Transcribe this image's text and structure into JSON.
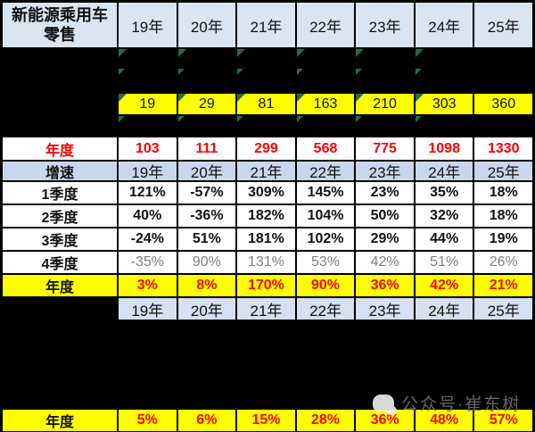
{
  "header": {
    "title": "新能源乘用车零售",
    "years": [
      "19年",
      "20年",
      "21年",
      "22年",
      "23年",
      "24年",
      "25年"
    ]
  },
  "retail_volume_row": {
    "values": [
      "19",
      "29",
      "81",
      "163",
      "210",
      "303",
      "360"
    ]
  },
  "annual_volume": {
    "label": "年度",
    "values": [
      "103",
      "111",
      "299",
      "568",
      "775",
      "1098",
      "1330"
    ]
  },
  "growth": {
    "label": "增速",
    "years": [
      "19年",
      "20年",
      "21年",
      "22年",
      "23年",
      "24年",
      "25年"
    ]
  },
  "quarters": [
    {
      "label": "1季度",
      "values": [
        "121%",
        "-57%",
        "309%",
        "145%",
        "23%",
        "35%",
        "18%"
      ]
    },
    {
      "label": "2季度",
      "values": [
        "40%",
        "-36%",
        "182%",
        "104%",
        "50%",
        "32%",
        "18%"
      ]
    },
    {
      "label": "3季度",
      "values": [
        "-24%",
        "51%",
        "181%",
        "102%",
        "29%",
        "44%",
        "19%"
      ]
    },
    {
      "label": "4季度",
      "values": [
        "-35%",
        "90%",
        "131%",
        "53%",
        "42%",
        "51%",
        "26%"
      ]
    }
  ],
  "annual_growth": {
    "label": "年度",
    "values": [
      "3%",
      "8%",
      "170%",
      "90%",
      "36%",
      "42%",
      "21%"
    ]
  },
  "lower_header": {
    "years": [
      "19年",
      "20年",
      "21年",
      "22年",
      "23年",
      "24年",
      "25年"
    ]
  },
  "bottom_annual": {
    "label": "年度",
    "values": [
      "5%",
      "6%",
      "15%",
      "28%",
      "36%",
      "48%",
      "57%"
    ]
  },
  "watermark": {
    "icon": "wechat-icon",
    "text": "公众号·崔东树"
  },
  "colors": {
    "header_blue": "#DAE5F2",
    "growth_blue": "#C9D7EC",
    "highlight_yellow": "#FFFF00",
    "value_red": "#FE0000",
    "muted_gray": "#7F7F7F",
    "triangle_green": "#1E7145",
    "hidden_black": "#000000"
  }
}
